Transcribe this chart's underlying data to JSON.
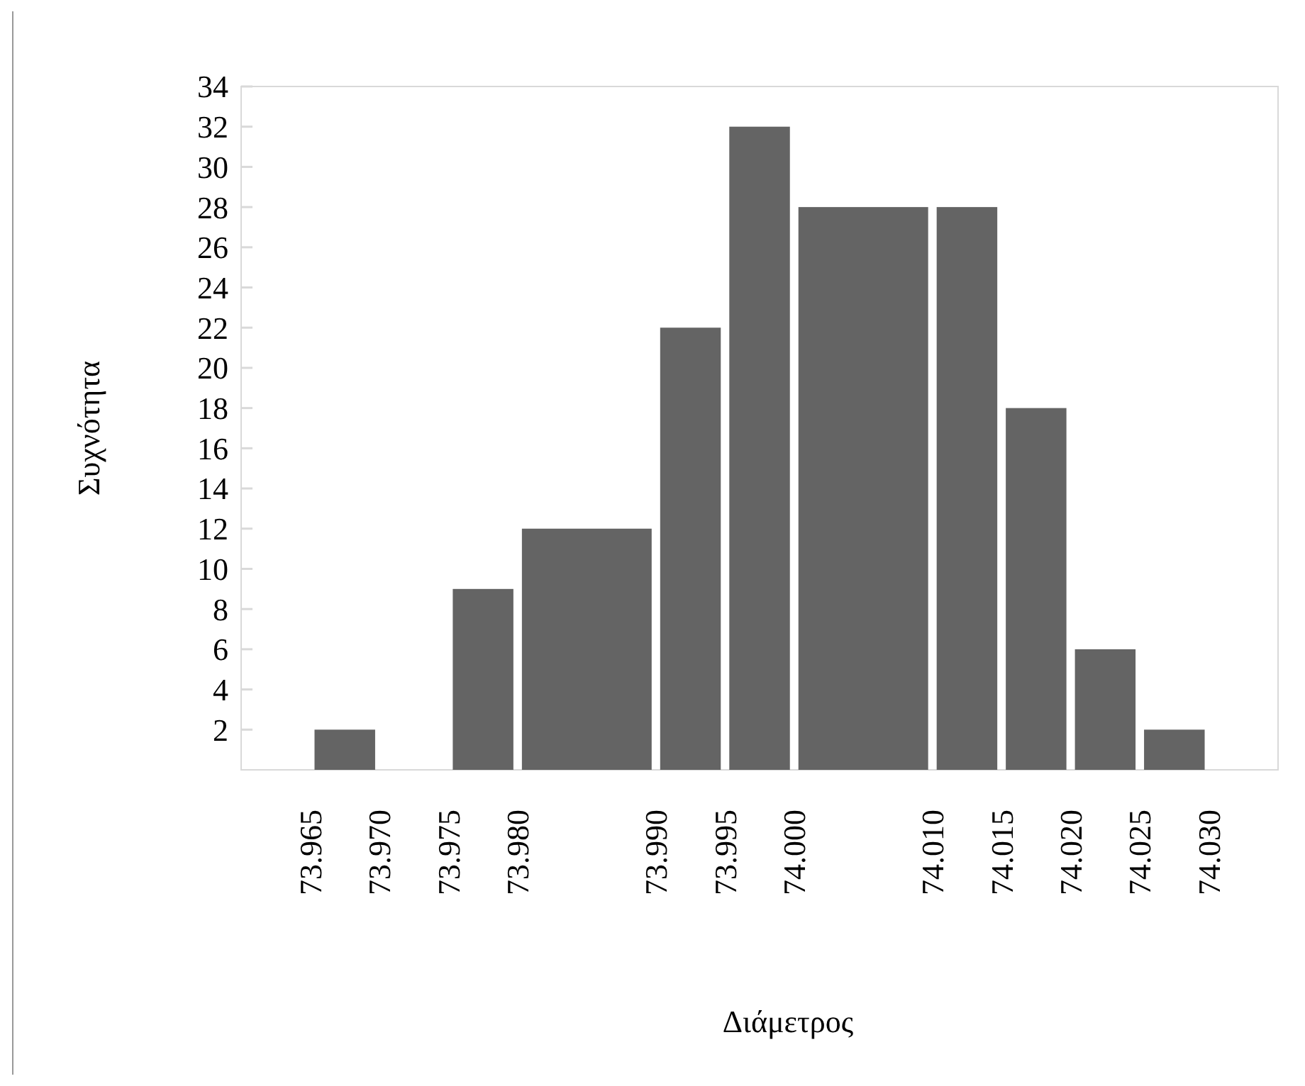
{
  "chart_data": {
    "type": "histogram",
    "xlabel": "Διάμετρος",
    "ylabel": "Συχνότητα",
    "bins": [
      73.965,
      73.97,
      73.975,
      73.98,
      73.99,
      73.995,
      74.0,
      74.01,
      74.015,
      74.02,
      74.025,
      74.03
    ],
    "values": [
      2,
      0,
      9,
      12,
      22,
      32,
      28,
      28,
      18,
      6,
      2
    ],
    "color": "#646464",
    "ylim": [
      0,
      34
    ],
    "yticks": [
      2,
      4,
      6,
      8,
      10,
      12,
      14,
      16,
      18,
      20,
      22,
      24,
      26,
      28,
      30,
      32,
      34
    ],
    "xlim": [
      73.96,
      74.035
    ],
    "xticks": [
      73.965,
      {
        "value": 73.97,
        "label": "73.970"
      },
      73.975,
      {
        "value": 73.98,
        "label": "73.980"
      },
      {
        "value": 73.99,
        "label": "73.990"
      },
      73.995,
      {
        "value": 74,
        "label": "74.000"
      },
      {
        "value": 74.01,
        "label": "74.010"
      },
      74.015,
      {
        "value": 74.02,
        "label": "74.020"
      },
      74.025,
      {
        "value": 74.03,
        "label": "74.030"
      }
    ],
    "grid": false,
    "legend": false
  }
}
